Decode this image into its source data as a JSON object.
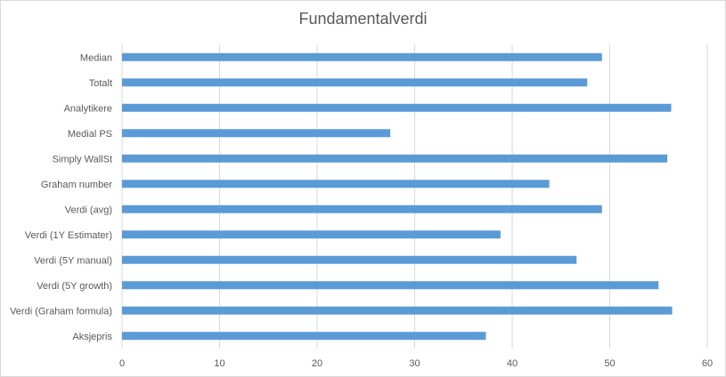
{
  "chart_data": {
    "type": "bar",
    "orientation": "horizontal",
    "title": "Fundamentalverdi",
    "xlabel": "",
    "ylabel": "",
    "categories": [
      "Median",
      "Totalt",
      "Analytikere",
      "Medial PS",
      "Simply WallSt",
      "Graham number",
      "Verdi (avg)",
      "Verdi (1Y Estimater)",
      "Verdi (5Y manual)",
      "Verdi (5Y growth)",
      "Verdi (Graham formula)",
      "Aksjepris"
    ],
    "values": [
      49.2,
      47.7,
      56.3,
      27.5,
      55.9,
      43.8,
      49.2,
      38.8,
      46.6,
      55.0,
      56.4,
      37.3
    ],
    "xlim": [
      0,
      60
    ],
    "xticks": [
      "0",
      "10",
      "20",
      "30",
      "40",
      "50",
      "60"
    ],
    "grid": "vertical",
    "legend": "none",
    "bar_color": "#5b9bd5",
    "grid_color": "#d9d9d9"
  }
}
